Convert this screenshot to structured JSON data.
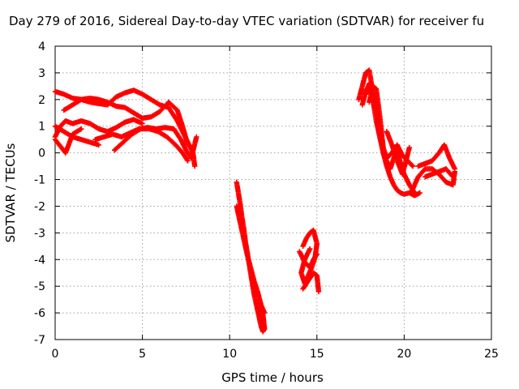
{
  "chart_data": {
    "type": "scatter",
    "title": "Day 279 of 2016, Sidereal Day-to-day VTEC variation (SDTVAR) for receiver fu",
    "xlabel": "GPS time / hours",
    "ylabel": "SDTVAR / TECUs",
    "xlim": [
      0,
      25
    ],
    "ylim": [
      -7,
      4
    ],
    "xticks": [
      "0",
      "5",
      "10",
      "15",
      "20",
      "25"
    ],
    "yticks": [
      "4",
      "3",
      "2",
      "1",
      "0",
      "-1",
      "-2",
      "-3",
      "-4",
      "-5",
      "-6",
      "-7"
    ],
    "grid": true,
    "marker": "plus",
    "color": "#ff0000",
    "series": [
      {
        "x": [
          0.0,
          0.5,
          1.0,
          1.5,
          2.0,
          2.5,
          3.0,
          3.5,
          4.0,
          4.5,
          5.0,
          5.5,
          6.0,
          6.5,
          7.0,
          7.3,
          7.6,
          7.9,
          8.0
        ],
        "y": [
          2.3,
          2.2,
          2.05,
          2.0,
          1.9,
          1.85,
          1.8,
          2.1,
          2.25,
          2.35,
          2.2,
          2.0,
          1.8,
          1.7,
          1.2,
          0.8,
          0.4,
          0.0,
          -0.5
        ]
      },
      {
        "x": [
          0.5,
          1.0,
          1.5,
          2.0,
          2.5,
          3.0,
          3.5,
          4.0,
          4.5,
          5.0,
          5.5,
          6.0,
          6.5,
          7.0,
          7.3,
          7.6
        ],
        "y": [
          1.6,
          1.8,
          2.0,
          2.05,
          2.0,
          1.9,
          1.75,
          1.7,
          1.5,
          1.3,
          1.35,
          1.55,
          1.9,
          1.6,
          1.0,
          0.3
        ]
      },
      {
        "x": [
          0.0,
          0.3,
          0.6,
          1.0,
          1.5,
          2.0,
          2.5,
          3.0,
          3.5,
          4.0,
          4.5,
          5.0
        ],
        "y": [
          0.6,
          1.0,
          1.2,
          1.1,
          1.2,
          1.1,
          0.9,
          0.8,
          0.95,
          1.15,
          1.25,
          1.1
        ]
      },
      {
        "x": [
          0.0,
          0.5,
          1.0,
          1.5,
          2.0,
          2.5
        ],
        "y": [
          1.0,
          0.8,
          0.6,
          0.5,
          0.4,
          0.3
        ]
      },
      {
        "x": [
          0.0,
          0.3,
          0.6,
          1.0,
          1.5
        ],
        "y": [
          0.5,
          0.25,
          0.0,
          0.7,
          0.9
        ]
      },
      {
        "x": [
          2.3,
          2.8,
          3.3,
          3.8,
          4.3,
          4.8,
          5.3,
          5.8,
          6.3,
          6.8,
          7.2,
          7.5,
          7.8,
          8.1
        ],
        "y": [
          0.5,
          0.6,
          0.7,
          0.6,
          0.75,
          0.9,
          0.95,
          0.9,
          0.95,
          0.9,
          0.5,
          0.1,
          -0.2,
          0.6
        ]
      },
      {
        "x": [
          3.4,
          3.9,
          4.4,
          4.9,
          5.4,
          5.9,
          6.4,
          6.9,
          7.3,
          7.6
        ],
        "y": [
          0.1,
          0.4,
          0.7,
          0.9,
          0.9,
          0.8,
          0.6,
          0.3,
          0.0,
          -0.3
        ]
      },
      {
        "x": [
          10.4,
          10.5,
          10.6,
          10.7,
          10.8,
          10.9,
          11.0,
          11.1,
          11.2,
          11.3,
          11.4,
          11.5,
          11.6,
          11.7,
          11.8,
          11.9,
          12.0
        ],
        "y": [
          -1.1,
          -1.5,
          -1.9,
          -2.4,
          -2.8,
          -3.3,
          -3.7,
          -4.1,
          -4.5,
          -4.9,
          -5.3,
          -5.6,
          -5.9,
          -6.2,
          -6.5,
          -6.7,
          -6.6
        ]
      },
      {
        "x": [
          10.4,
          10.6,
          10.8,
          11.0,
          11.2,
          11.4,
          11.6,
          11.8,
          12.0
        ],
        "y": [
          -2.0,
          -2.6,
          -3.2,
          -3.8,
          -4.3,
          -4.8,
          -5.2,
          -5.7,
          -6.0
        ]
      },
      {
        "x": [
          11.6,
          11.8,
          12.0,
          11.9,
          11.7
        ],
        "y": [
          -5.8,
          -6.3,
          -6.6,
          -6.0,
          -5.5
        ]
      },
      {
        "x": [
          14.2,
          14.4,
          14.6,
          14.8,
          15.0,
          14.9,
          14.7,
          14.5,
          14.3,
          14.1,
          14.3,
          14.6
        ],
        "y": [
          -3.5,
          -3.2,
          -3.0,
          -2.9,
          -3.4,
          -3.9,
          -4.3,
          -4.6,
          -4.9,
          -4.5,
          -4.0,
          -3.6
        ]
      },
      {
        "x": [
          14.2,
          14.5,
          14.8,
          15.0,
          15.1
        ],
        "y": [
          -5.1,
          -4.8,
          -4.5,
          -4.6,
          -5.2
        ]
      },
      {
        "x": [
          14.0,
          14.3,
          14.6,
          14.8,
          15.0
        ],
        "y": [
          -3.7,
          -4.1,
          -4.3,
          -4.0,
          -3.8
        ]
      },
      {
        "x": [
          17.4,
          17.6,
          17.8,
          18.0,
          18.2,
          18.4,
          18.6,
          18.8,
          19.0,
          19.2,
          19.4,
          19.6,
          19.8,
          20.0,
          20.3,
          20.6,
          20.9
        ],
        "y": [
          2.0,
          2.5,
          3.0,
          3.1,
          2.3,
          1.6,
          0.8,
          0.0,
          -0.5,
          -0.9,
          -1.2,
          -1.4,
          -1.5,
          -1.55,
          -1.5,
          -1.6,
          -1.5
        ]
      },
      {
        "x": [
          17.6,
          17.8,
          18.0,
          18.2,
          18.4,
          18.6,
          18.8,
          19.0,
          19.2,
          19.4,
          19.6,
          19.8,
          20.0,
          20.3,
          20.6
        ],
        "y": [
          1.8,
          2.3,
          2.6,
          2.0,
          1.2,
          0.6,
          0.0,
          -0.3,
          -0.6,
          -0.2,
          0.1,
          -0.4,
          -0.8,
          -1.2,
          -1.5
        ]
      },
      {
        "x": [
          17.8,
          18.0,
          18.2,
          18.4,
          18.6,
          18.8,
          19.0,
          19.3,
          19.6,
          19.9,
          20.2,
          20.5
        ],
        "y": [
          2.2,
          2.5,
          2.2,
          1.5,
          0.8,
          0.2,
          -0.2,
          0.0,
          0.3,
          -0.1,
          -0.3,
          -0.5
        ]
      },
      {
        "x": [
          18.0,
          18.2,
          18.4,
          18.6,
          18.8
        ],
        "y": [
          1.9,
          2.5,
          2.4,
          1.4,
          0.2
        ]
      },
      {
        "x": [
          19.0,
          19.3,
          19.6,
          19.9,
          20.1,
          20.3
        ],
        "y": [
          0.8,
          0.3,
          -0.3,
          -0.8,
          -0.3,
          0.2
        ]
      },
      {
        "x": [
          20.4,
          20.8,
          21.2,
          21.6,
          22.0,
          22.4,
          22.8,
          22.9
        ],
        "y": [
          -1.5,
          -0.9,
          -0.6,
          -0.6,
          -0.8,
          -1.1,
          -1.2,
          -0.7
        ]
      },
      {
        "x": [
          20.8,
          21.2,
          21.6,
          22.0,
          22.3,
          22.6,
          22.9
        ],
        "y": [
          -0.5,
          -0.4,
          -0.3,
          0.0,
          0.3,
          -0.2,
          -0.6
        ]
      },
      {
        "x": [
          21.2,
          21.6,
          22.0,
          22.4,
          22.8
        ],
        "y": [
          -0.9,
          -0.8,
          -0.7,
          -0.6,
          -0.9
        ]
      }
    ]
  }
}
